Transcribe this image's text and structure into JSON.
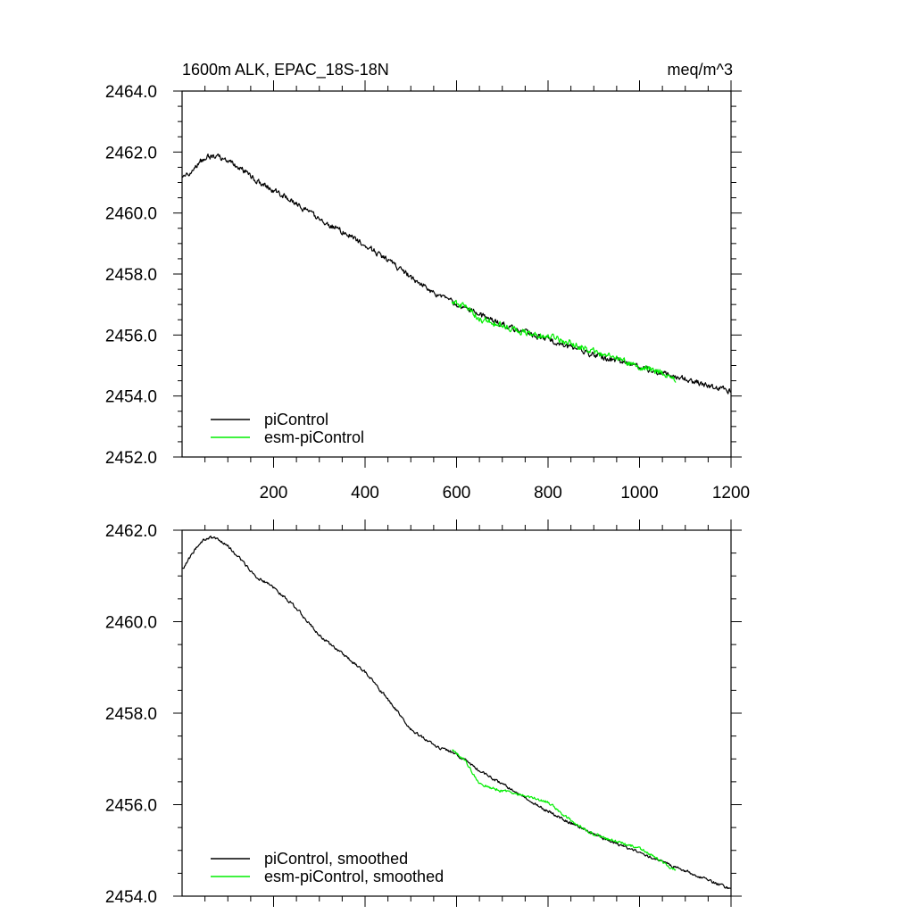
{
  "chart_data": [
    {
      "type": "line",
      "title": "1600m ALK, EPAC_18S-18N",
      "units": "meq/m^3",
      "xlabel": "",
      "ylabel": "",
      "xlim": [
        0,
        1200
      ],
      "ylim": [
        2452,
        2464
      ],
      "xticks": [
        200,
        400,
        600,
        800,
        1000,
        1200
      ],
      "xtick_labels": [
        "200",
        "400",
        "600",
        "800",
        "1000",
        "1200"
      ],
      "yticks": [
        2452,
        2454,
        2456,
        2458,
        2460,
        2462,
        2464
      ],
      "ytick_labels": [
        "2452.0",
        "2454.0",
        "2456.0",
        "2458.0",
        "2460.0",
        "2462.0",
        "2464.0"
      ],
      "legend": "bottom-left",
      "grid": false,
      "series": [
        {
          "name": "piControl",
          "color": "#000000",
          "x_start": 1,
          "x_end": 1200,
          "anchors_x": [
            1,
            20,
            40,
            60,
            80,
            100,
            130,
            160,
            200,
            250,
            300,
            350,
            400,
            450,
            500,
            550,
            600,
            650,
            700,
            750,
            800,
            850,
            900,
            950,
            1000,
            1050,
            1100,
            1150,
            1200
          ],
          "anchors_y": [
            2461.1,
            2461.4,
            2461.7,
            2461.85,
            2461.85,
            2461.7,
            2461.45,
            2461.1,
            2460.75,
            2460.3,
            2459.8,
            2459.4,
            2458.95,
            2458.45,
            2457.9,
            2457.4,
            2457.0,
            2456.65,
            2456.35,
            2456.1,
            2455.85,
            2455.6,
            2455.35,
            2455.15,
            2454.95,
            2454.75,
            2454.55,
            2454.35,
            2454.15
          ],
          "noise": 0.15
        },
        {
          "name": "esm-piControl",
          "color": "#00ee00",
          "x_start": 590,
          "x_end": 1080,
          "anchors_x": [
            590,
            620,
            650,
            700,
            750,
            800,
            850,
            900,
            950,
            1000,
            1050,
            1080
          ],
          "anchors_y": [
            2457.1,
            2456.9,
            2456.55,
            2456.3,
            2456.1,
            2455.95,
            2455.75,
            2455.45,
            2455.2,
            2454.95,
            2454.75,
            2454.55
          ],
          "noise": 0.17
        }
      ]
    },
    {
      "type": "line",
      "title": "",
      "xlabel": "",
      "ylabel": "",
      "xlim": [
        0,
        1200
      ],
      "ylim": [
        2454,
        2462
      ],
      "xticks": [
        200,
        400,
        600,
        800,
        1000,
        1200
      ],
      "xtick_labels": [],
      "yticks": [
        2454,
        2456,
        2458,
        2460,
        2462
      ],
      "ytick_labels": [
        "2454.0",
        "2456.0",
        "2458.0",
        "2460.0",
        "2462.0"
      ],
      "legend": "bottom-left",
      "grid": false,
      "series": [
        {
          "name": "piControl, smoothed",
          "color": "#000000",
          "x_start": 1,
          "x_end": 1200,
          "anchors_x": [
            1,
            20,
            40,
            60,
            80,
            100,
            130,
            160,
            200,
            250,
            300,
            350,
            400,
            450,
            500,
            550,
            600,
            650,
            700,
            750,
            800,
            850,
            900,
            950,
            1000,
            1050,
            1100,
            1150,
            1200
          ],
          "anchors_y": [
            2461.15,
            2461.45,
            2461.75,
            2461.85,
            2461.8,
            2461.65,
            2461.35,
            2461.0,
            2460.75,
            2460.3,
            2459.7,
            2459.3,
            2458.9,
            2458.3,
            2457.65,
            2457.3,
            2457.1,
            2456.75,
            2456.45,
            2456.15,
            2455.85,
            2455.6,
            2455.35,
            2455.15,
            2454.95,
            2454.75,
            2454.55,
            2454.35,
            2454.15
          ],
          "noise": 0.05
        },
        {
          "name": "esm-piControl, smoothed",
          "color": "#00ee00",
          "x_start": 590,
          "x_end": 1080,
          "anchors_x": [
            590,
            620,
            650,
            700,
            750,
            800,
            850,
            900,
            950,
            1000,
            1050,
            1080
          ],
          "anchors_y": [
            2457.2,
            2456.95,
            2456.45,
            2456.3,
            2456.2,
            2456.05,
            2455.65,
            2455.35,
            2455.2,
            2455.05,
            2454.75,
            2454.55
          ],
          "noise": 0.05
        }
      ]
    }
  ]
}
